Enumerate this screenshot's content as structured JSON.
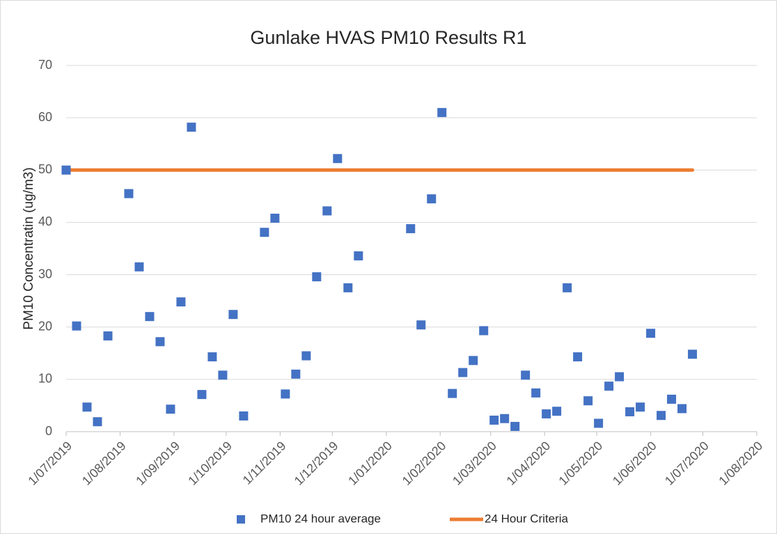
{
  "chart_data": {
    "type": "scatter",
    "title": "Gunlake HVAS PM10 Results R1",
    "y_label": "PM10 Concentratin (ug/m3)",
    "ylim": [
      0,
      70
    ],
    "yticks": [
      0,
      10,
      20,
      30,
      40,
      50,
      60,
      70
    ],
    "xlim": [
      "2019-07-01",
      "2020-08-01"
    ],
    "xticks": [
      {
        "value": "2019-07-01",
        "label": "1/07/2019"
      },
      {
        "value": "2019-08-01",
        "label": "1/08/2019"
      },
      {
        "value": "2019-09-01",
        "label": "1/09/2019"
      },
      {
        "value": "2019-10-01",
        "label": "1/10/2019"
      },
      {
        "value": "2019-11-01",
        "label": "1/11/2019"
      },
      {
        "value": "2019-12-01",
        "label": "1/12/2019"
      },
      {
        "value": "2020-01-01",
        "label": "1/01/2020"
      },
      {
        "value": "2020-02-01",
        "label": "1/02/2020"
      },
      {
        "value": "2020-03-01",
        "label": "1/03/2020"
      },
      {
        "value": "2020-04-01",
        "label": "1/04/2020"
      },
      {
        "value": "2020-05-01",
        "label": "1/05/2020"
      },
      {
        "value": "2020-06-01",
        "label": "1/06/2020"
      },
      {
        "value": "2020-07-01",
        "label": "1/07/2020"
      },
      {
        "value": "2020-08-01",
        "label": "1/08/2020"
      }
    ],
    "grid": true,
    "legend": "bottom",
    "series": [
      {
        "name": "PM10 24 hour average",
        "type": "scatter",
        "color": "#4472c4",
        "x": [
          "2019-07-01",
          "2019-07-07",
          "2019-07-13",
          "2019-07-19",
          "2019-07-25",
          "2019-08-06",
          "2019-08-12",
          "2019-08-18",
          "2019-08-24",
          "2019-08-30",
          "2019-09-05",
          "2019-09-11",
          "2019-09-17",
          "2019-09-23",
          "2019-09-29",
          "2019-10-05",
          "2019-10-11",
          "2019-10-23",
          "2019-10-29",
          "2019-11-04",
          "2019-11-10",
          "2019-11-16",
          "2019-11-22",
          "2019-11-28",
          "2019-12-04",
          "2019-12-10",
          "2019-12-16",
          "2020-01-15",
          "2020-01-21",
          "2020-01-27",
          "2020-02-02",
          "2020-02-08",
          "2020-02-14",
          "2020-02-20",
          "2020-02-26",
          "2020-03-03",
          "2020-03-09",
          "2020-03-15",
          "2020-03-21",
          "2020-03-27",
          "2020-04-02",
          "2020-04-08",
          "2020-04-14",
          "2020-04-20",
          "2020-04-26",
          "2020-05-02",
          "2020-05-08",
          "2020-05-14",
          "2020-05-20",
          "2020-05-26",
          "2020-06-01",
          "2020-06-07",
          "2020-06-13",
          "2020-06-19",
          "2020-06-25"
        ],
        "values": [
          50,
          20.2,
          4.7,
          1.9,
          18.3,
          45.5,
          31.5,
          22,
          17.2,
          4.3,
          24.8,
          58.2,
          7.1,
          14.3,
          10.8,
          22.4,
          3,
          38.1,
          40.8,
          7.2,
          11,
          14.5,
          29.6,
          42.2,
          52.2,
          27.5,
          33.6,
          38.8,
          20.4,
          44.5,
          61,
          7.3,
          11.3,
          13.6,
          19.3,
          2.2,
          2.5,
          1,
          10.8,
          7.4,
          3.4,
          3.9,
          27.5,
          14.3,
          5.9,
          1.6,
          8.7,
          10.5,
          3.8,
          4.7,
          18.8,
          3.1,
          6.2,
          4.4,
          14.8
        ]
      },
      {
        "name": "24 Hour Criteria",
        "type": "line",
        "color": "#ed7d31",
        "x": [
          "2019-07-01",
          "2020-06-25"
        ],
        "values": [
          50,
          50
        ]
      }
    ]
  }
}
